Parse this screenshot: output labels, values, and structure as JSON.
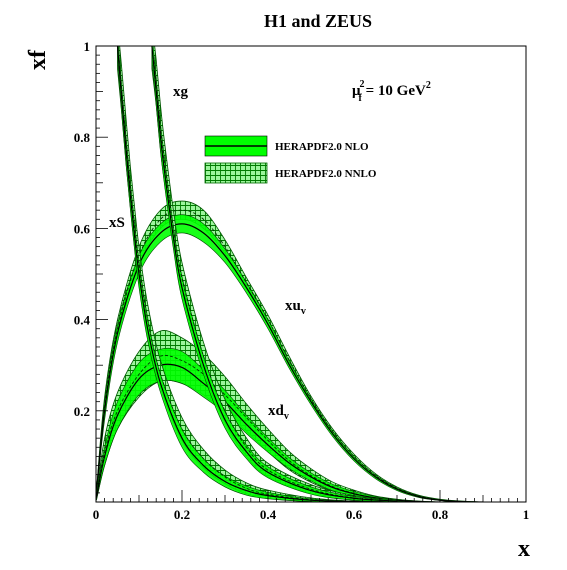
{
  "chart_data": {
    "type": "line",
    "title": "H1 and ZEUS",
    "xlabel": "x",
    "ylabel": "xf",
    "xlim": [
      0,
      1
    ],
    "ylim": [
      0,
      1
    ],
    "x_ticks": [
      "0",
      "0.2",
      "0.4",
      "0.6",
      "0.8",
      "1"
    ],
    "y_ticks": [
      "0.2",
      "0.4",
      "0.6",
      "0.8",
      "1"
    ],
    "grid": false,
    "scale": {
      "base": "μ",
      "sub": "f",
      "sup": "2",
      "eq": " = 10 GeV",
      "unit_sup": "2"
    },
    "legend": {
      "placement": "top-center",
      "entries": [
        {
          "label": "HERAPDF2.0 NLO",
          "style": "solid-band"
        },
        {
          "label": "HERAPDF2.0 NNLO",
          "style": "hatched-band"
        }
      ]
    },
    "curve_labels": {
      "xg": "xg",
      "xS": "xS",
      "xuv": {
        "base": "xu",
        "sub": "v"
      },
      "xdv": {
        "base": "xd",
        "sub": "v"
      }
    },
    "colors": {
      "band": "#00ff00",
      "hatch": "#008800",
      "line": "#000000"
    },
    "series": [
      {
        "key": "xuv",
        "x": [
          0.001,
          0.02,
          0.05,
          0.1,
          0.15,
          0.2,
          0.25,
          0.3,
          0.35,
          0.4,
          0.45,
          0.5,
          0.55,
          0.6,
          0.65,
          0.7,
          0.75,
          0.8,
          0.85,
          0.9
        ],
        "nlo": [
          0.02,
          0.2,
          0.37,
          0.52,
          0.59,
          0.61,
          0.59,
          0.54,
          0.47,
          0.39,
          0.3,
          0.22,
          0.15,
          0.095,
          0.055,
          0.028,
          0.012,
          0.004,
          0.001,
          0
        ],
        "nlo_err": [
          0.005,
          0.02,
          0.02,
          0.02,
          0.02,
          0.02,
          0.02,
          0.015,
          0.012,
          0.01,
          0.008,
          0.007,
          0.006,
          0.005,
          0.004,
          0.003,
          0.002,
          0.001,
          0.001,
          0
        ],
        "nnlo": [
          0.02,
          0.21,
          0.38,
          0.54,
          0.62,
          0.64,
          0.62,
          0.56,
          0.48,
          0.4,
          0.31,
          0.225,
          0.155,
          0.1,
          0.058,
          0.03,
          0.013,
          0.005,
          0.001,
          0
        ],
        "nnlo_err": [
          0.005,
          0.02,
          0.02,
          0.02,
          0.02,
          0.02,
          0.02,
          0.015,
          0.012,
          0.01,
          0.008,
          0.007,
          0.006,
          0.005,
          0.004,
          0.003,
          0.002,
          0.001,
          0.001,
          0
        ]
      },
      {
        "key": "xdv",
        "x": [
          0.001,
          0.02,
          0.05,
          0.1,
          0.15,
          0.2,
          0.25,
          0.3,
          0.35,
          0.4,
          0.45,
          0.5,
          0.55,
          0.6,
          0.65,
          0.7,
          0.75,
          0.8
        ],
        "nlo": [
          0.01,
          0.1,
          0.19,
          0.27,
          0.3,
          0.295,
          0.26,
          0.22,
          0.17,
          0.125,
          0.085,
          0.055,
          0.032,
          0.018,
          0.009,
          0.004,
          0.001,
          0
        ],
        "nlo_err": [
          0.005,
          0.02,
          0.03,
          0.035,
          0.035,
          0.035,
          0.03,
          0.025,
          0.02,
          0.016,
          0.012,
          0.009,
          0.007,
          0.005,
          0.003,
          0.002,
          0.001,
          0
        ],
        "nnlo": [
          0.01,
          0.11,
          0.2,
          0.28,
          0.32,
          0.31,
          0.28,
          0.235,
          0.185,
          0.135,
          0.09,
          0.058,
          0.034,
          0.019,
          0.009,
          0.004,
          0.001,
          0
        ],
        "nnlo_err": [
          0.006,
          0.03,
          0.04,
          0.05,
          0.055,
          0.05,
          0.045,
          0.04,
          0.03,
          0.025,
          0.02,
          0.015,
          0.01,
          0.007,
          0.004,
          0.002,
          0.001,
          0
        ]
      },
      {
        "key": "xg",
        "x": [
          0.13,
          0.14,
          0.15,
          0.16,
          0.18,
          0.2,
          0.25,
          0.3,
          0.35,
          0.4,
          0.5,
          0.6,
          0.7
        ],
        "nlo": [
          1.0,
          0.9,
          0.8,
          0.72,
          0.58,
          0.47,
          0.3,
          0.18,
          0.11,
          0.065,
          0.025,
          0.008,
          0.002
        ],
        "nlo_err": [
          0.03,
          0.03,
          0.03,
          0.03,
          0.025,
          0.025,
          0.02,
          0.018,
          0.015,
          0.012,
          0.008,
          0.004,
          0.002
        ],
        "nnlo": [
          1.0,
          0.92,
          0.82,
          0.74,
          0.6,
          0.49,
          0.32,
          0.2,
          0.12,
          0.07,
          0.028,
          0.009,
          0.002
        ],
        "nnlo_err": [
          0.05,
          0.05,
          0.05,
          0.045,
          0.04,
          0.035,
          0.03,
          0.025,
          0.02,
          0.015,
          0.01,
          0.005,
          0.002
        ]
      },
      {
        "key": "xS",
        "x": [
          0.05,
          0.06,
          0.07,
          0.08,
          0.09,
          0.1,
          0.12,
          0.15,
          0.2,
          0.25,
          0.3,
          0.35,
          0.4,
          0.5,
          0.6,
          0.7
        ],
        "nlo": [
          1.0,
          0.88,
          0.77,
          0.67,
          0.58,
          0.5,
          0.38,
          0.26,
          0.14,
          0.08,
          0.045,
          0.025,
          0.014,
          0.004,
          0.001,
          0
        ],
        "nlo_err": [
          0.03,
          0.03,
          0.03,
          0.03,
          0.03,
          0.03,
          0.025,
          0.02,
          0.02,
          0.015,
          0.012,
          0.01,
          0.007,
          0.003,
          0.001,
          0
        ],
        "nnlo": [
          1.0,
          0.9,
          0.79,
          0.69,
          0.6,
          0.52,
          0.4,
          0.28,
          0.16,
          0.095,
          0.055,
          0.03,
          0.017,
          0.005,
          0.001,
          0
        ],
        "nnlo_err": [
          0.05,
          0.05,
          0.05,
          0.045,
          0.045,
          0.04,
          0.035,
          0.03,
          0.025,
          0.02,
          0.015,
          0.012,
          0.009,
          0.004,
          0.001,
          0
        ]
      }
    ]
  }
}
